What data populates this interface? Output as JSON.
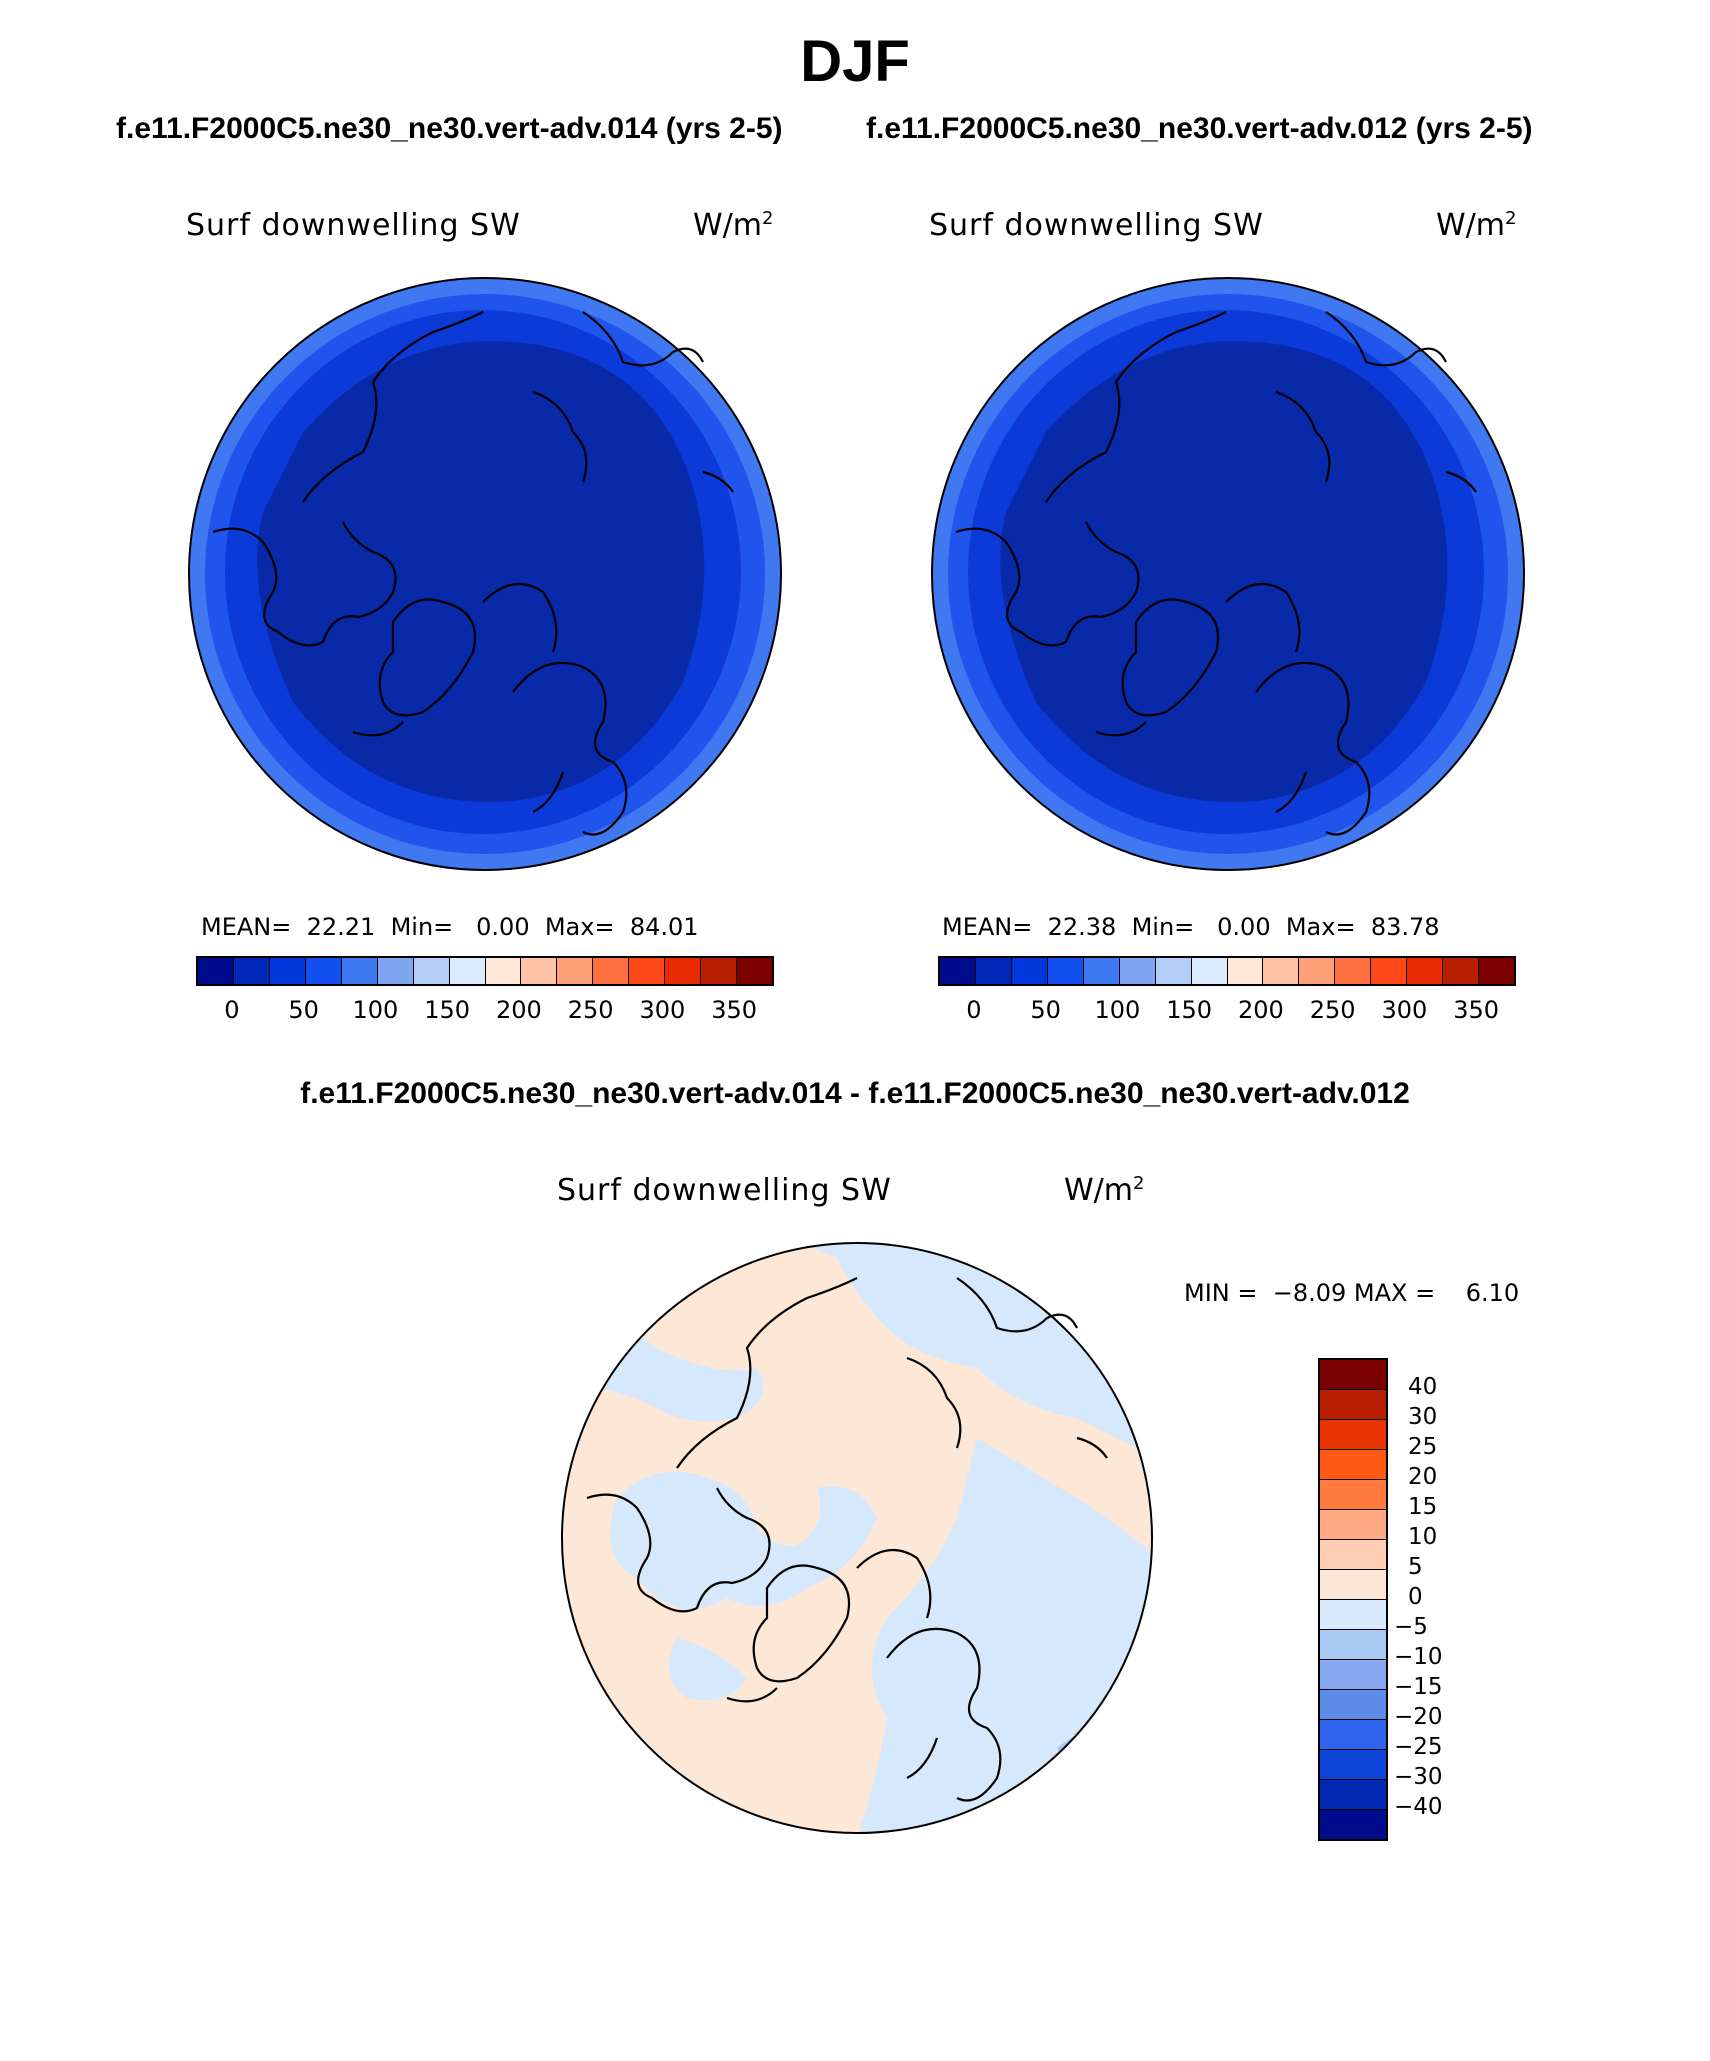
{
  "main_title": "DJF",
  "panels": [
    {
      "case_title": "f.e11.F2000C5.ne30_ne30.vert-adv.014 (yrs 2-5)",
      "variable": "Surf downwelling SW",
      "units_base": "W/m",
      "units_exp": "2",
      "stats_text": "MEAN=  22.21  Min=   0.00  Max=  84.01",
      "mean": 22.21,
      "min": 0.0,
      "max": 84.01
    },
    {
      "case_title": "f.e11.F2000C5.ne30_ne30.vert-adv.012 (yrs 2-5)",
      "variable": "Surf downwelling SW",
      "units_base": "W/m",
      "units_exp": "2",
      "stats_text": "MEAN=  22.38  Min=   0.00  Max=  83.78",
      "mean": 22.38,
      "min": 0.0,
      "max": 83.78
    }
  ],
  "difference": {
    "title": "f.e11.F2000C5.ne30_ne30.vert-adv.014 - f.e11.F2000C5.ne30_ne30.vert-adv.012",
    "variable": "Surf downwelling SW",
    "units_base": "W/m",
    "units_exp": "2",
    "minmax_text": "MIN =  −8.09 MAX =    6.10",
    "min": -8.09,
    "max": 6.1
  },
  "colorbar_main": {
    "colors": [
      "#000a8c",
      "#0028b8",
      "#0038dc",
      "#1450f0",
      "#3c78f0",
      "#7ea6f0",
      "#b4cdf8",
      "#dceaff",
      "#ffe8d8",
      "#ffc4a8",
      "#ffa078",
      "#ff7040",
      "#ff4818",
      "#e82a00",
      "#b81e00",
      "#7c0000"
    ],
    "tick_labels": [
      "0",
      "50",
      "100",
      "150",
      "200",
      "250",
      "300",
      "350"
    ]
  },
  "colorbar_diff": {
    "colors": [
      "#7c0000",
      "#b81e00",
      "#e83400",
      "#ff5a14",
      "#ff7a3c",
      "#ffa882",
      "#ffccb4",
      "#fde8d8",
      "#d8e9fb",
      "#aac8f4",
      "#86a8f0",
      "#5a8ce8",
      "#2c64ec",
      "#0c44d8",
      "#0028b0",
      "#000c8c"
    ],
    "labels": [
      "40",
      "30",
      "25",
      "20",
      "15",
      "10",
      "5",
      "0",
      "−5",
      "−10",
      "−15",
      "−20",
      "−25",
      "−30",
      "−40"
    ]
  },
  "map_colors": {
    "inner": "#0829a8",
    "mid": "#0c3ad8",
    "outer": "#1f55ec",
    "edge": "#3f78f0",
    "diff_warm": "#fde8d8",
    "diff_cool": "#d6e8fb",
    "diff_cooler": "#a8c4f2"
  }
}
